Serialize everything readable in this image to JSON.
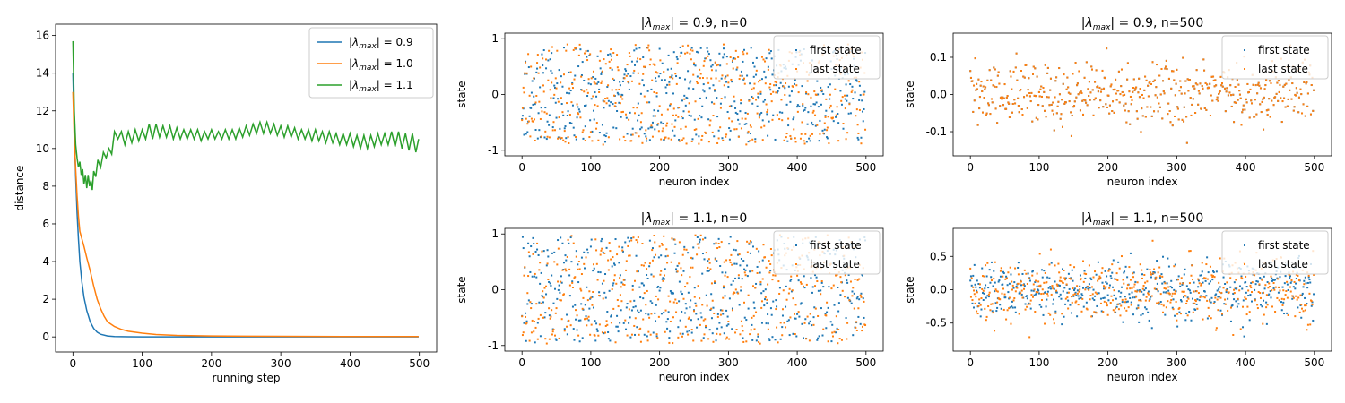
{
  "colors": {
    "blue": "#1f77b4",
    "orange": "#ff7f0e",
    "green": "#2ca02c"
  },
  "chart_data": [
    {
      "id": "distance",
      "type": "line",
      "title": "",
      "xlabel": "running step",
      "ylabel": "distance",
      "xlim": [
        -25,
        525
      ],
      "ylim": [
        -0.8,
        16.6
      ],
      "xticks": [
        0,
        100,
        200,
        300,
        400,
        500
      ],
      "yticks": [
        0,
        2,
        4,
        6,
        8,
        10,
        12,
        14,
        16
      ],
      "legend": "top-right",
      "grid": false,
      "series": [
        {
          "name": "|λmax| = 0.9",
          "legend": {
            "base": "|λ",
            "sub": "max",
            "rest": "| = 0.9"
          },
          "color": "#1f77b4",
          "x": [
            0,
            2,
            4,
            6,
            8,
            10,
            13,
            16,
            20,
            25,
            30,
            35,
            40,
            50,
            60,
            80,
            100,
            150,
            200,
            300,
            400,
            499
          ],
          "y": [
            14.0,
            11.0,
            8.5,
            6.6,
            5.2,
            4.0,
            2.9,
            2.1,
            1.4,
            0.8,
            0.45,
            0.25,
            0.14,
            0.05,
            0.02,
            0.01,
            0.0,
            0.0,
            0.0,
            0.0,
            0.0,
            0.0
          ]
        },
        {
          "name": "|λmax| = 1.0",
          "legend": {
            "base": "|λ",
            "sub": "max",
            "rest": "| = 1.0"
          },
          "color": "#ff7f0e",
          "x": [
            0,
            2,
            4,
            6,
            8,
            10,
            13,
            16,
            20,
            25,
            30,
            35,
            40,
            45,
            50,
            60,
            70,
            80,
            100,
            120,
            150,
            200,
            250,
            300,
            400,
            499
          ],
          "y": [
            13.0,
            10.5,
            8.9,
            7.5,
            6.4,
            5.6,
            5.2,
            4.8,
            4.2,
            3.5,
            2.7,
            2.0,
            1.5,
            1.1,
            0.8,
            0.55,
            0.4,
            0.3,
            0.2,
            0.13,
            0.08,
            0.05,
            0.04,
            0.03,
            0.02,
            0.02
          ]
        },
        {
          "name": "|λmax| = 1.1",
          "legend": {
            "base": "|λ",
            "sub": "max",
            "rest": "| = 1.1"
          },
          "color": "#2ca02c",
          "x": [
            0,
            2,
            4,
            6,
            8,
            10,
            12,
            14,
            16,
            18,
            20,
            22,
            24,
            26,
            28,
            30,
            33,
            36,
            40,
            44,
            48,
            52,
            56,
            60,
            65,
            70,
            75,
            80,
            85,
            90,
            95,
            100,
            105,
            110,
            115,
            120,
            125,
            130,
            135,
            140,
            145,
            150,
            155,
            160,
            165,
            170,
            175,
            180,
            185,
            190,
            195,
            200,
            205,
            210,
            215,
            220,
            225,
            230,
            235,
            240,
            245,
            250,
            255,
            260,
            265,
            270,
            275,
            280,
            285,
            290,
            295,
            300,
            305,
            310,
            315,
            320,
            325,
            330,
            335,
            340,
            345,
            350,
            355,
            360,
            365,
            370,
            375,
            380,
            385,
            390,
            395,
            400,
            405,
            410,
            415,
            420,
            425,
            430,
            435,
            440,
            445,
            450,
            455,
            460,
            465,
            470,
            475,
            480,
            485,
            490,
            495,
            499
          ],
          "y": [
            15.7,
            12.0,
            10.2,
            9.5,
            9.0,
            9.3,
            8.6,
            8.9,
            8.1,
            8.6,
            7.9,
            8.6,
            8.0,
            8.3,
            7.8,
            8.8,
            8.5,
            9.4,
            9.0,
            9.8,
            9.5,
            10.0,
            9.7,
            10.9,
            10.5,
            10.9,
            10.2,
            10.9,
            10.3,
            11.0,
            10.4,
            11.0,
            10.5,
            11.3,
            10.5,
            11.3,
            10.6,
            11.2,
            10.6,
            11.2,
            10.5,
            11.1,
            10.5,
            11.0,
            10.5,
            11.0,
            10.5,
            11.0,
            10.4,
            10.9,
            10.5,
            11.0,
            10.5,
            10.9,
            10.5,
            11.0,
            10.5,
            11.0,
            10.5,
            11.1,
            10.6,
            11.2,
            10.7,
            11.3,
            10.8,
            11.4,
            10.8,
            11.4,
            10.8,
            11.3,
            10.7,
            11.2,
            10.6,
            11.2,
            10.6,
            11.1,
            10.5,
            11.0,
            10.5,
            11.0,
            10.4,
            11.0,
            10.4,
            10.9,
            10.3,
            10.9,
            10.3,
            10.8,
            10.2,
            10.8,
            10.2,
            10.8,
            10.1,
            10.7,
            10.0,
            10.7,
            10.0,
            10.7,
            10.1,
            10.8,
            10.2,
            10.8,
            10.2,
            10.9,
            10.1,
            10.9,
            10.0,
            10.8,
            9.9,
            10.8,
            9.8,
            10.5
          ]
        }
      ]
    },
    {
      "id": "p09_n0",
      "type": "scatter",
      "title": {
        "base": "|λ",
        "sub": "max",
        "rest": "| = 0.9, n=0"
      },
      "xlabel": "neuron index",
      "ylabel": "state",
      "xlim": [
        -25,
        525
      ],
      "ylim": [
        -1.1,
        1.1
      ],
      "xticks": [
        0,
        100,
        200,
        300,
        400,
        500
      ],
      "yticks": [
        -1,
        0,
        1
      ],
      "legend": "top-right",
      "series": [
        {
          "name": "first state",
          "color": "#1f77b4",
          "n": 500,
          "spread": 0.85,
          "distribution": "uniform",
          "seed": 11
        },
        {
          "name": "last state",
          "color": "#ff7f0e",
          "n": 500,
          "spread": 0.9,
          "distribution": "uniform",
          "seed": 23
        }
      ]
    },
    {
      "id": "p09_n500",
      "type": "scatter",
      "title": {
        "base": "|λ",
        "sub": "max",
        "rest": "| = 0.9, n=500"
      },
      "xlabel": "neuron index",
      "ylabel": "state",
      "xlim": [
        -25,
        525
      ],
      "ylim": [
        -0.165,
        0.165
      ],
      "xticks": [
        0,
        100,
        200,
        300,
        400,
        500
      ],
      "yticks": [
        -0.1,
        0.0,
        0.1
      ],
      "legend": "top-right",
      "series": [
        {
          "name": "first state",
          "color": "#1f77b4",
          "n": 500,
          "spread": 0.15,
          "distribution": "normal",
          "sd": 0.045,
          "seed": 31,
          "same_as_next": true
        },
        {
          "name": "last state",
          "color": "#ff7f0e",
          "n": 500,
          "spread": 0.15,
          "distribution": "normal",
          "sd": 0.045,
          "seed": 31
        }
      ]
    },
    {
      "id": "p11_n0",
      "type": "scatter",
      "title": {
        "base": "|λ",
        "sub": "max",
        "rest": "| = 1.1, n=0"
      },
      "xlabel": "neuron index",
      "ylabel": "state",
      "xlim": [
        -25,
        525
      ],
      "ylim": [
        -1.1,
        1.1
      ],
      "xticks": [
        0,
        100,
        200,
        300,
        400,
        500
      ],
      "yticks": [
        -1,
        0,
        1
      ],
      "legend": "top-right",
      "series": [
        {
          "name": "first state",
          "color": "#1f77b4",
          "n": 500,
          "spread": 0.95,
          "distribution": "uniform",
          "seed": 41
        },
        {
          "name": "last state",
          "color": "#ff7f0e",
          "n": 500,
          "spread": 0.98,
          "distribution": "uniform",
          "seed": 53
        }
      ]
    },
    {
      "id": "p11_n500",
      "type": "scatter",
      "title": {
        "base": "|λ",
        "sub": "max",
        "rest": "| = 1.1, n=500"
      },
      "xlabel": "neuron index",
      "ylabel": "state",
      "xlim": [
        -25,
        525
      ],
      "ylim": [
        -0.92,
        0.92
      ],
      "xticks": [
        0,
        100,
        200,
        300,
        400,
        500
      ],
      "yticks": [
        -0.5,
        0.0,
        0.5
      ],
      "legend": "top-right",
      "series": [
        {
          "name": "first state",
          "color": "#1f77b4",
          "n": 500,
          "spread": 0.7,
          "distribution": "normal",
          "sd": 0.22,
          "seed": 61
        },
        {
          "name": "last state",
          "color": "#ff7f0e",
          "n": 500,
          "spread": 0.85,
          "distribution": "normal",
          "sd": 0.24,
          "seed": 73
        }
      ]
    }
  ]
}
